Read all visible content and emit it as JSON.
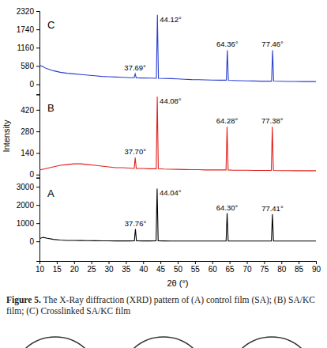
{
  "chart_data": {
    "type": "line",
    "xlabel": "2θ (°)",
    "ylabel": "Intensity",
    "xlim": [
      10,
      90
    ],
    "xticks": [
      10,
      15,
      20,
      25,
      30,
      35,
      40,
      45,
      50,
      55,
      60,
      65,
      70,
      75,
      80,
      85,
      90
    ],
    "grid": false,
    "panels": [
      {
        "label": "A",
        "ylim": [
          -1080,
          3500
        ],
        "yticks": [
          0,
          1000,
          2000,
          3000
        ],
        "series": [
          {
            "color": "#000000",
            "x": [
              10,
              11,
              12,
              14,
              16,
              18,
              20,
              22,
              24,
              26,
              28,
              30,
              32,
              34,
              36,
              37.46,
              37.76,
              38.06,
              40,
              42,
              43.74,
              44.04,
              44.34,
              46,
              48,
              50,
              52,
              54,
              56,
              58,
              60,
              62,
              64.0,
              64.3,
              64.6,
              66,
              68,
              70,
              72,
              74,
              77.11,
              77.41,
              77.71,
              80,
              82,
              84,
              86,
              88,
              90
            ],
            "values": [
              150,
              220,
              180,
              110,
              70,
              50,
              50,
              45,
              40,
              35,
              30,
              30,
              25,
              25,
              25,
              30,
              680,
              30,
              25,
              25,
              30,
              2900,
              30,
              25,
              20,
              20,
              20,
              20,
              20,
              20,
              20,
              20,
              25,
              1550,
              25,
              20,
              20,
              20,
              20,
              20,
              25,
              1500,
              25,
              20,
              20,
              20,
              20,
              20,
              20
            ]
          }
        ],
        "annotations": [
          {
            "text": "37.76°",
            "x": 37.76,
            "y": 680
          },
          {
            "text": "44.04°",
            "x": 44.04,
            "y": 2900
          },
          {
            "text": "64.30°",
            "x": 64.3,
            "y": 1550
          },
          {
            "text": "77.41°",
            "x": 77.41,
            "y": 1500
          }
        ]
      },
      {
        "label": "B",
        "ylim": [
          -20,
          520
        ],
        "yticks": [
          0,
          140,
          280,
          420
        ],
        "series": [
          {
            "color": "#e0201b",
            "x": [
              10,
              11,
              12,
              14,
              16,
              18,
              20,
              22,
              24,
              26,
              28,
              30,
              32,
              34,
              36,
              37.4,
              37.7,
              38.0,
              40,
              42,
              43.78,
              44.08,
              44.38,
              46,
              48,
              50,
              52,
              54,
              56,
              58,
              60,
              62,
              63.98,
              64.28,
              64.58,
              66,
              68,
              70,
              72,
              74,
              77.08,
              77.38,
              77.68,
              80,
              82,
              84,
              86,
              88,
              90
            ],
            "values": [
              30,
              35,
              40,
              50,
              60,
              65,
              70,
              70,
              65,
              60,
              55,
              50,
              45,
              45,
              42,
              40,
              110,
              40,
              40,
              38,
              38,
              505,
              38,
              36,
              35,
              34,
              33,
              32,
              32,
              30,
              30,
              30,
              30,
              310,
              30,
              28,
              28,
              28,
              27,
              27,
              27,
              310,
              27,
              26,
              26,
              25,
              25,
              25,
              25
            ]
          }
        ],
        "annotations": [
          {
            "text": "37.70°",
            "x": 37.7,
            "y": 110
          },
          {
            "text": "44.08°",
            "x": 44.08,
            "y": 505
          },
          {
            "text": "64.28°",
            "x": 64.28,
            "y": 310
          },
          {
            "text": "77.38°",
            "x": 77.38,
            "y": 310
          }
        ]
      },
      {
        "label": "C",
        "ylim": [
          -320,
          2320
        ],
        "yticks": [
          0,
          580,
          1160,
          1740,
          2320
        ],
        "series": [
          {
            "color": "#2a3fd1",
            "x": [
              10,
              11,
              12,
              14,
              16,
              18,
              20,
              22,
              24,
              26,
              28,
              30,
              32,
              34,
              36,
              37.39,
              37.69,
              37.99,
              40,
              42,
              43.82,
              44.12,
              44.42,
              46,
              48,
              50,
              52,
              54,
              56,
              58,
              60,
              62,
              64.06,
              64.36,
              64.66,
              66,
              68,
              70,
              72,
              74,
              77.16,
              77.46,
              77.76,
              80,
              82,
              84,
              86,
              88,
              90
            ],
            "values": [
              600,
              560,
              500,
              430,
              380,
              350,
              330,
              310,
              290,
              270,
              250,
              240,
              230,
              220,
              210,
              210,
              330,
              205,
              200,
              195,
              190,
              2200,
              190,
              185,
              180,
              170,
              160,
              150,
              145,
              140,
              135,
              130,
              130,
              1080,
              125,
              120,
              115,
              110,
              105,
              100,
              100,
              1080,
              100,
              95,
              90,
              90,
              85,
              85,
              85
            ]
          }
        ],
        "annotations": [
          {
            "text": "37.69°",
            "x": 37.69,
            "y": 330
          },
          {
            "text": "44.12°",
            "x": 44.12,
            "y": 2200
          },
          {
            "text": "64.36°",
            "x": 64.36,
            "y": 1080
          },
          {
            "text": "77.46°",
            "x": 77.46,
            "y": 1080
          }
        ]
      }
    ]
  },
  "caption": {
    "label": "Figure 5.",
    "text": "The X-Ray diffraction (XRD) pattern of (A) control film (SA); (B) SA/KC film; (C) Crosslinked SA/KC film"
  }
}
